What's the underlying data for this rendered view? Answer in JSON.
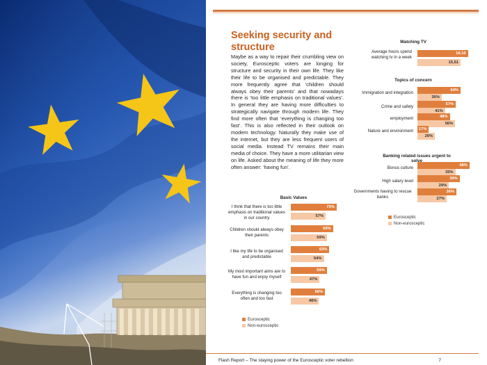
{
  "article": {
    "title": "Seeking security and structure",
    "body": "Maybe as a way to repair their crumbling view on society, Eurosceptic voters are longing for structure and security in their own life. They like their life to be organised and predictable. They more frequently agree that ‘children should always obey their parents’ and that nowadays there is ‘too little emphasis on traditional values’. In general they are having more difficulties to strategically navigate through modern life. They find more often that ‘everything is changing too fast’. This is also reflected in their outlook on modern technology. Naturally they make use of the internet, but they are less frequent users of social media. Instead TV remains their main media of choice. They have a more utilitarian view on life. Asked about the meaning of life they more often answer: ‘having fun’."
  },
  "colors": {
    "eurosceptic": "#e07f3d",
    "non_eurosceptic": "#f6c8a5",
    "accent": "#c9621f"
  },
  "chart_data": [
    {
      "type": "bar",
      "title": "Basic Values",
      "categories": [
        "I think that there is too little emphasis on traditional values in our country",
        "Children should always obey their parents",
        "I like my life to be organised and predictable",
        "My most important aims are to have fun and enjoy myself",
        "Everything is changing too often and too fast"
      ],
      "series": [
        {
          "name": "Eurosceptic",
          "values": [
            75,
            69,
            63,
            59,
            56
          ],
          "labels": [
            "75%",
            "69%",
            "63%",
            "59%",
            "56%"
          ]
        },
        {
          "name": "Non-eurosceptic",
          "values": [
            57,
            59,
            54,
            47,
            46
          ],
          "labels": [
            "57%",
            "59%",
            "54%",
            "47%",
            "46%"
          ]
        }
      ],
      "legend": [
        "Eurosceptic",
        "Non-eurosceptic"
      ]
    },
    {
      "type": "bar",
      "title": "Watching TV",
      "categories": [
        "Average hours spend watching tv in a week"
      ],
      "series": [
        {
          "name": "Eurosceptic",
          "values": [
            18.16
          ],
          "labels": [
            "18,16"
          ]
        },
        {
          "name": "Non-eurosceptic",
          "values": [
            15.51
          ],
          "labels": [
            "15,51"
          ]
        }
      ]
    },
    {
      "type": "bar",
      "title": "Topics of concern",
      "categories": [
        "Immigration and integration",
        "Crime and safety",
        "employment",
        "Nature and environment"
      ],
      "series": [
        {
          "name": "Eurosceptic",
          "values": [
            64,
            57,
            48,
            17
          ],
          "labels": [
            "64%",
            "57%",
            "48%",
            "17%"
          ]
        },
        {
          "name": "Non-eurosceptic",
          "values": [
            36,
            41,
            56,
            26
          ],
          "labels": [
            "36%",
            "41%",
            "56%",
            "26%"
          ]
        }
      ]
    },
    {
      "type": "bar",
      "title": "Banking related issues urgent to solve",
      "categories": [
        "Bonus culture",
        "High salary level",
        "Governments having to rescue banks"
      ],
      "series": [
        {
          "name": "Eurosceptic",
          "values": [
            48,
            39,
            36
          ],
          "labels": [
            "48%",
            "39%",
            "36%"
          ]
        },
        {
          "name": "Non-eurosceptic",
          "values": [
            35,
            29,
            27
          ],
          "labels": [
            "35%",
            "29%",
            "27%"
          ]
        }
      ],
      "legend": [
        "Eurosceptic",
        "Non-eurosceptic"
      ]
    }
  ],
  "footer": {
    "text": "Flash Report – The staying power of the Eurosceptic voter rebellion",
    "page_number": "7"
  }
}
